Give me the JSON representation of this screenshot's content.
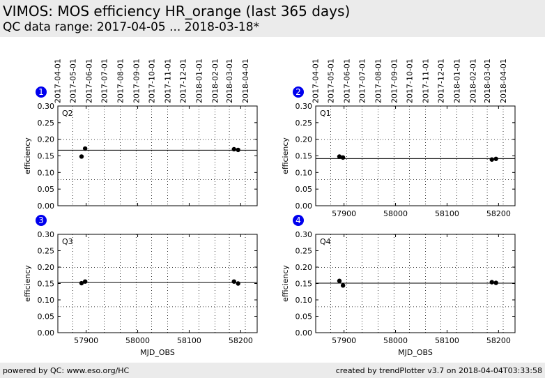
{
  "header": {
    "title": "VIMOS: MOS efficiency HR_orange (last 365 days)",
    "subtitle": "QC data range: 2017-04-05 ... 2018-03-18*"
  },
  "footer": {
    "left": "powered by QC: www.eso.org/HC",
    "right": "created by trendPlotter v3.7 on 2018-04-04T03:33:58"
  },
  "colors": {
    "badge": "#0000ee",
    "points": "#000000",
    "background": "#ebebeb"
  },
  "chart_data": [
    {
      "type": "scatter",
      "badge": "1",
      "label": "Q2",
      "xlabel": "",
      "ylabel": "efficiency",
      "xlim": [
        57845,
        58232
      ],
      "ylim": [
        0,
        0.3
      ],
      "xticks": [
        57900,
        58000,
        58100,
        58200
      ],
      "yticks": [
        "0.00",
        "0.05",
        "0.10",
        "0.15",
        "0.20",
        "0.25",
        "0.30"
      ],
      "top_date_ticks": [
        "2017-04-01",
        "2017-05-01",
        "2017-06-01",
        "2017-07-01",
        "2017-08-01",
        "2017-09-01",
        "2017-10-01",
        "2017-11-01",
        "2017-12-01",
        "2018-01-01",
        "2018-02-01",
        "2018-03-01",
        "2018-04-01"
      ],
      "show_x_ticklabels": false,
      "reference_line": 0.167,
      "dotted_lines": [
        0.199,
        0.079
      ],
      "points": [
        {
          "x": 57891,
          "y": 0.148
        },
        {
          "x": 57898,
          "y": 0.172
        },
        {
          "x": 58187,
          "y": 0.17
        },
        {
          "x": 58195,
          "y": 0.168
        }
      ]
    },
    {
      "type": "scatter",
      "badge": "2",
      "label": "Q1",
      "xlabel": "",
      "ylabel": "efficiency",
      "xlim": [
        57845,
        58232
      ],
      "ylim": [
        0,
        0.3
      ],
      "xticks": [
        57900,
        58000,
        58100,
        58200
      ],
      "yticks": [
        "0.00",
        "0.05",
        "0.10",
        "0.15",
        "0.20",
        "0.25",
        "0.30"
      ],
      "top_date_ticks": [
        "2017-04-01",
        "2017-05-01",
        "2017-06-01",
        "2017-07-01",
        "2017-08-01",
        "2017-09-01",
        "2017-10-01",
        "2017-11-01",
        "2017-12-01",
        "2018-01-01",
        "2018-02-01",
        "2018-03-01",
        "2018-04-01"
      ],
      "show_x_ticklabels": true,
      "reference_line": 0.142,
      "dotted_lines": [
        0.199,
        0.079
      ],
      "points": [
        {
          "x": 57891,
          "y": 0.148
        },
        {
          "x": 57898,
          "y": 0.145
        },
        {
          "x": 58187,
          "y": 0.139
        },
        {
          "x": 58195,
          "y": 0.141
        }
      ]
    },
    {
      "type": "scatter",
      "badge": "3",
      "label": "Q3",
      "xlabel": "MJD_OBS",
      "ylabel": "efficiency",
      "xlim": [
        57845,
        58232
      ],
      "ylim": [
        0,
        0.3
      ],
      "xticks": [
        57900,
        58000,
        58100,
        58200
      ],
      "yticks": [
        "0.00",
        "0.05",
        "0.10",
        "0.15",
        "0.20",
        "0.25",
        "0.30"
      ],
      "top_date_ticks": [],
      "show_x_ticklabels": true,
      "reference_line": 0.153,
      "dotted_lines": [
        0.199,
        0.079
      ],
      "points": [
        {
          "x": 57891,
          "y": 0.151
        },
        {
          "x": 57898,
          "y": 0.156
        },
        {
          "x": 58187,
          "y": 0.156
        },
        {
          "x": 58195,
          "y": 0.15
        }
      ]
    },
    {
      "type": "scatter",
      "badge": "4",
      "label": "Q4",
      "xlabel": "MJD_OBS",
      "ylabel": "efficiency",
      "xlim": [
        57845,
        58232
      ],
      "ylim": [
        0,
        0.3
      ],
      "xticks": [
        57900,
        58000,
        58100,
        58200
      ],
      "yticks": [
        "0.00",
        "0.05",
        "0.10",
        "0.15",
        "0.20",
        "0.25",
        "0.30"
      ],
      "top_date_ticks": [],
      "show_x_ticklabels": true,
      "reference_line": 0.151,
      "dotted_lines": [
        0.199,
        0.079
      ],
      "points": [
        {
          "x": 57891,
          "y": 0.158
        },
        {
          "x": 57898,
          "y": 0.144
        },
        {
          "x": 58187,
          "y": 0.154
        },
        {
          "x": 58195,
          "y": 0.152
        }
      ]
    }
  ]
}
